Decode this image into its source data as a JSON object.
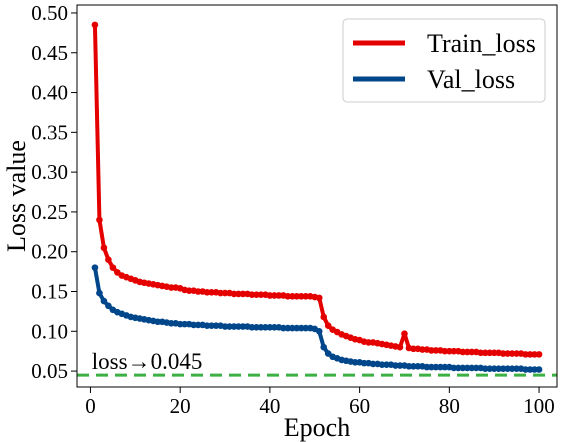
{
  "chart_data": {
    "type": "line",
    "title": "",
    "xlabel": "Epoch",
    "ylabel": "Loss value",
    "xlim": [
      -3,
      104
    ],
    "ylim": [
      0.03,
      0.51
    ],
    "xticks": [
      0,
      20,
      40,
      60,
      80,
      100
    ],
    "xtick_labels": [
      "0",
      "20",
      "40",
      "60",
      "80",
      "100"
    ],
    "yticks": [
      0.05,
      0.1,
      0.15,
      0.2,
      0.25,
      0.3,
      0.35,
      0.4,
      0.45,
      0.5
    ],
    "ytick_labels": [
      "0.05",
      "0.10",
      "0.15",
      "0.20",
      "0.25",
      "0.30",
      "0.35",
      "0.40",
      "0.45",
      "0.50"
    ],
    "grid": false,
    "legend_position": "top-right",
    "x": [
      1,
      2,
      3,
      4,
      5,
      6,
      7,
      8,
      9,
      10,
      11,
      12,
      13,
      14,
      15,
      16,
      17,
      18,
      19,
      20,
      21,
      22,
      23,
      24,
      25,
      26,
      27,
      28,
      29,
      30,
      31,
      32,
      33,
      34,
      35,
      36,
      37,
      38,
      39,
      40,
      41,
      42,
      43,
      44,
      45,
      46,
      47,
      48,
      49,
      50,
      51,
      52,
      53,
      54,
      55,
      56,
      57,
      58,
      59,
      60,
      61,
      62,
      63,
      64,
      65,
      66,
      67,
      68,
      69,
      70,
      71,
      72,
      73,
      74,
      75,
      76,
      77,
      78,
      79,
      80,
      81,
      82,
      83,
      84,
      85,
      86,
      87,
      88,
      89,
      90,
      91,
      92,
      93,
      94,
      95,
      96,
      97,
      98,
      99,
      100
    ],
    "series": [
      {
        "name": "Train_loss",
        "color": "#e50000",
        "values": [
          0.485,
          0.24,
          0.205,
          0.19,
          0.18,
          0.174,
          0.17,
          0.168,
          0.166,
          0.164,
          0.162,
          0.161,
          0.16,
          0.159,
          0.158,
          0.157,
          0.156,
          0.155,
          0.155,
          0.154,
          0.152,
          0.151,
          0.151,
          0.15,
          0.15,
          0.149,
          0.149,
          0.149,
          0.148,
          0.148,
          0.148,
          0.147,
          0.147,
          0.147,
          0.147,
          0.146,
          0.146,
          0.146,
          0.146,
          0.145,
          0.145,
          0.145,
          0.145,
          0.144,
          0.144,
          0.144,
          0.144,
          0.144,
          0.144,
          0.143,
          0.142,
          0.118,
          0.107,
          0.102,
          0.099,
          0.096,
          0.094,
          0.092,
          0.09,
          0.089,
          0.087,
          0.086,
          0.086,
          0.085,
          0.084,
          0.083,
          0.082,
          0.081,
          0.08,
          0.097,
          0.079,
          0.078,
          0.078,
          0.077,
          0.077,
          0.076,
          0.076,
          0.076,
          0.075,
          0.075,
          0.075,
          0.075,
          0.074,
          0.074,
          0.074,
          0.074,
          0.073,
          0.073,
          0.073,
          0.073,
          0.073,
          0.072,
          0.072,
          0.072,
          0.072,
          0.072,
          0.071,
          0.071,
          0.071,
          0.071
        ]
      },
      {
        "name": "Val_loss",
        "color": "#00468b",
        "values": [
          0.18,
          0.148,
          0.138,
          0.132,
          0.127,
          0.124,
          0.122,
          0.12,
          0.118,
          0.117,
          0.116,
          0.115,
          0.114,
          0.113,
          0.112,
          0.112,
          0.111,
          0.11,
          0.11,
          0.109,
          0.109,
          0.109,
          0.108,
          0.108,
          0.108,
          0.107,
          0.107,
          0.107,
          0.107,
          0.106,
          0.106,
          0.106,
          0.106,
          0.106,
          0.106,
          0.105,
          0.105,
          0.105,
          0.105,
          0.105,
          0.105,
          0.105,
          0.104,
          0.104,
          0.104,
          0.104,
          0.104,
          0.104,
          0.104,
          0.103,
          0.1,
          0.08,
          0.072,
          0.068,
          0.066,
          0.064,
          0.063,
          0.062,
          0.061,
          0.061,
          0.06,
          0.06,
          0.059,
          0.059,
          0.058,
          0.058,
          0.058,
          0.057,
          0.057,
          0.057,
          0.056,
          0.056,
          0.056,
          0.056,
          0.055,
          0.055,
          0.055,
          0.055,
          0.055,
          0.055,
          0.054,
          0.054,
          0.054,
          0.054,
          0.054,
          0.054,
          0.054,
          0.053,
          0.053,
          0.053,
          0.053,
          0.053,
          0.053,
          0.053,
          0.053,
          0.053,
          0.052,
          0.052,
          0.052,
          0.052
        ]
      }
    ],
    "reference_line": {
      "y": 0.045,
      "color": "#3cb043",
      "style": "dashed",
      "label": "loss→0.045"
    }
  }
}
